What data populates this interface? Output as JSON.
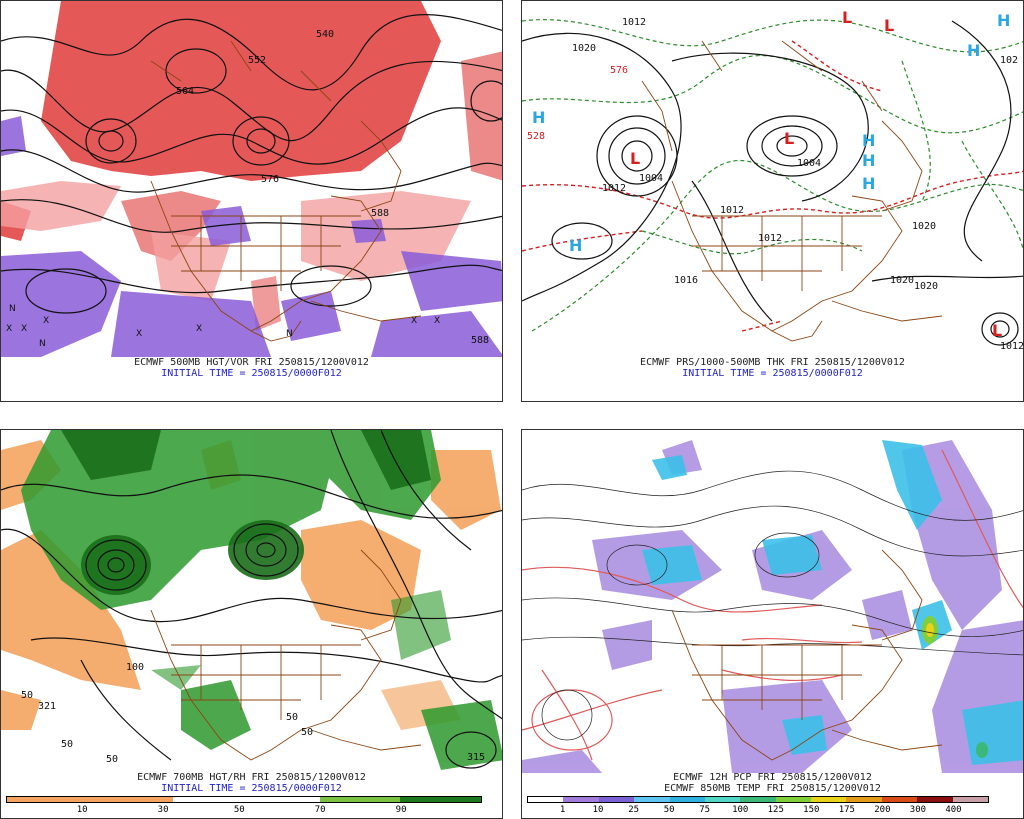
{
  "panels": {
    "p1": {
      "line1": "ECMWF 500MB HGT/VOR FRI 250815/1200V012",
      "line2": "INITIAL TIME = 250815/0000F012",
      "contour_labels": [
        "540",
        "552",
        "564",
        "576",
        "588",
        "588"
      ],
      "symbols": {
        "n": "N",
        "x": "X"
      }
    },
    "p2": {
      "line1": "ECMWF PRS/1000-500MB THK FRI 250815/1200V012",
      "line2": "INITIAL TIME = 250815/0000F012",
      "high": "H",
      "low": "L",
      "pressure_labels": [
        "1012",
        "1020",
        "1004",
        "1012",
        "1004",
        "1012",
        "1020",
        "1012",
        "1012",
        "1020",
        "1020",
        "1016",
        "102",
        "576",
        "528"
      ]
    },
    "p3": {
      "line1": "ECMWF 700MB HGT/RH FRI 250815/1200V012",
      "line2": "INITIAL TIME = 250815/0000F012",
      "labels": [
        "321",
        "50",
        "50",
        "50",
        "50",
        "315",
        "50",
        "100"
      ],
      "scale_ticks": [
        "10",
        "30",
        "50",
        "70",
        "90"
      ],
      "scale_colors": [
        "#f4a460",
        "#ffffff",
        "#ffffff",
        "#7cc242",
        "#1f7a1f"
      ]
    },
    "p4": {
      "line1": "ECMWF 12H PCP FRI 250815/1200V012",
      "line2": "ECMWF 850MB TEMP FRI 250815/1200V012",
      "scale_ticks": [
        "1",
        "10",
        "25",
        "50",
        "75",
        "100",
        "125",
        "150",
        "175",
        "200",
        "300",
        "400"
      ],
      "scale_colors": [
        "#ffffff",
        "#a27cdb",
        "#7b5fd4",
        "#5ec5f0",
        "#2fb0e0",
        "#52d6c8",
        "#3cb878",
        "#7fcf3b",
        "#e8d21a",
        "#e39a16",
        "#d84a16",
        "#8a1010",
        "#c8a0a8"
      ]
    }
  },
  "colors": {
    "vorticity": "#e03b3b",
    "vorticity_light": "#f4a0a0",
    "neg_vort": "#8a5cd8",
    "border": "#8b4513",
    "contour": "#111111",
    "thickness_green": "#2e8b2e",
    "thickness_red": "#d62020",
    "high": "#29a8e0",
    "low": "#d62020",
    "rh_dry": "#f4a460",
    "rh_moist": "#2e9a2e",
    "rh_moist_dark": "#1b6e1b",
    "pcp_light": "#a88be0",
    "pcp_cyan": "#3cc0e8",
    "temp_line": "#e05a5a"
  }
}
